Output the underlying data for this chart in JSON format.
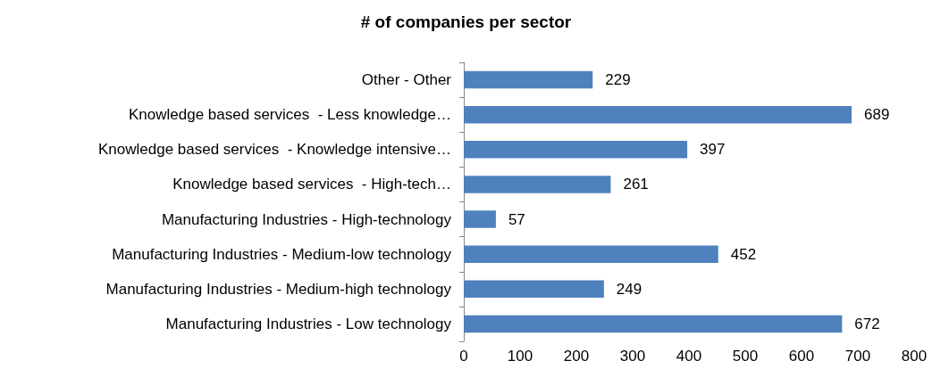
{
  "chart_data": {
    "type": "bar",
    "orientation": "horizontal",
    "title": "# of companies per sector",
    "categories": [
      "Other - Other",
      "Knowledge based services  - Less knowledge…",
      "Knowledge based services  - Knowledge intensive…",
      "Knowledge based services  - High-tech…",
      "Manufacturing Industries - High-technology",
      "Manufacturing Industries - Medium-low technology",
      "Manufacturing Industries - Medium-high technology",
      "Manufacturing Industries - Low technology"
    ],
    "values": [
      229,
      689,
      397,
      261,
      57,
      452,
      249,
      672
    ],
    "color": "#4f81bd",
    "xlim": [
      0,
      800
    ],
    "xticks": [
      0,
      100,
      200,
      300,
      400,
      500,
      600,
      700,
      800
    ],
    "grid": false,
    "data_labels": true
  }
}
